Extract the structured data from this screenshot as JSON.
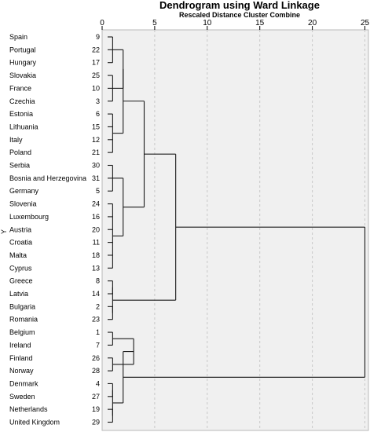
{
  "chart_data": {
    "type": "dendrogram",
    "title": "Dendrogram using Ward Linkage",
    "subtitle": "Rescaled Distance Cluster Combine",
    "ylabel": "Y",
    "x_ticks": [
      0,
      5,
      10,
      15,
      20,
      25
    ],
    "xlim": [
      0,
      25
    ],
    "grid": true,
    "leaves": [
      {
        "label": "Spain",
        "id": 9
      },
      {
        "label": "Portugal",
        "id": 22
      },
      {
        "label": "Hungary",
        "id": 17
      },
      {
        "label": "Slovakia",
        "id": 25
      },
      {
        "label": "France",
        "id": 10
      },
      {
        "label": "Czechia",
        "id": 3
      },
      {
        "label": "Estonia",
        "id": 6
      },
      {
        "label": "Lithuania",
        "id": 15
      },
      {
        "label": "Italy",
        "id": 12
      },
      {
        "label": "Poland",
        "id": 21
      },
      {
        "label": "Serbia",
        "id": 30
      },
      {
        "label": "Bosnia and Herzegovina",
        "id": 31
      },
      {
        "label": "Germany",
        "id": 5
      },
      {
        "label": "Slovenia",
        "id": 24
      },
      {
        "label": "Luxembourg",
        "id": 16
      },
      {
        "label": "Austria",
        "id": 20
      },
      {
        "label": "Croatia",
        "id": 11
      },
      {
        "label": "Malta",
        "id": 18
      },
      {
        "label": "Cyprus",
        "id": 13
      },
      {
        "label": "Greece",
        "id": 8
      },
      {
        "label": "Latvia",
        "id": 14
      },
      {
        "label": "Bulgaria",
        "id": 2
      },
      {
        "label": "Romania",
        "id": 23
      },
      {
        "label": "Belgium",
        "id": 1
      },
      {
        "label": "Ireland",
        "id": 7
      },
      {
        "label": "Finland",
        "id": 26
      },
      {
        "label": "Norway",
        "id": 28
      },
      {
        "label": "Denmark",
        "id": 4
      },
      {
        "label": "Sweden",
        "id": 27
      },
      {
        "label": "Netherlands",
        "id": 19
      },
      {
        "label": "United Kingdom",
        "id": 29
      }
    ],
    "merges": [
      {
        "id": "A",
        "children": [
          9,
          22,
          17
        ],
        "height": 1
      },
      {
        "id": "B",
        "children": [
          25,
          10,
          3
        ],
        "height": 1
      },
      {
        "id": "C",
        "children": [
          6,
          15,
          12,
          21
        ],
        "height": 1
      },
      {
        "id": "D",
        "children": [
          "A",
          "B"
        ],
        "height": 2
      },
      {
        "id": "E",
        "children": [
          "D",
          "C"
        ],
        "height": 2
      },
      {
        "id": "F",
        "children": [
          30,
          31,
          5
        ],
        "height": 1
      },
      {
        "id": "G",
        "children": [
          24,
          16,
          20,
          11,
          18,
          13
        ],
        "height": 1
      },
      {
        "id": "H",
        "children": [
          "F",
          "G"
        ],
        "height": 2
      },
      {
        "id": "I",
        "children": [
          "E",
          "H"
        ],
        "height": 4
      },
      {
        "id": "J",
        "children": [
          8,
          14
        ],
        "height": 1
      },
      {
        "id": "K",
        "children": [
          2,
          23
        ],
        "height": 1
      },
      {
        "id": "L",
        "children": [
          "J",
          "K"
        ],
        "height": 1
      },
      {
        "id": "M",
        "children": [
          "I",
          "L"
        ],
        "height": 7
      },
      {
        "id": "N",
        "children": [
          1,
          7
        ],
        "height": 1
      },
      {
        "id": "O",
        "children": [
          26,
          28
        ],
        "height": 1
      },
      {
        "id": "P",
        "children": [
          "N",
          "O"
        ],
        "height": 3
      },
      {
        "id": "Q",
        "children": [
          4,
          27
        ],
        "height": 1
      },
      {
        "id": "R",
        "children": [
          19,
          29
        ],
        "height": 1
      },
      {
        "id": "S",
        "children": [
          "Q",
          "R"
        ],
        "height": 1
      },
      {
        "id": "T",
        "children": [
          "P",
          "S"
        ],
        "height": 2
      },
      {
        "id": "U",
        "children": [
          "M",
          "T"
        ],
        "height": 25
      }
    ]
  }
}
